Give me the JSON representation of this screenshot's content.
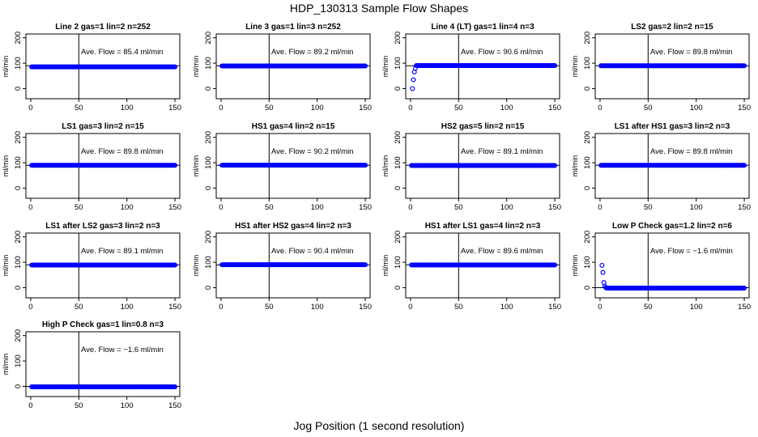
{
  "title": "HDP_130313  Sample Flow Shapes",
  "xlabel": "Jog Position (1 second resolution)",
  "colors": {
    "points": "#0000ff",
    "axes": "#000000"
  },
  "chart_data": [
    {
      "type": "scatter",
      "title": "Line 2 gas=1 lin=2 n=252",
      "ylabel": "ml/min",
      "xlim": [
        0,
        150
      ],
      "ylim": [
        0,
        200
      ],
      "x_ticks": [
        0,
        50,
        100,
        150
      ],
      "y_ticks": [
        0,
        100,
        200
      ],
      "vline": 50,
      "hline": 90,
      "annotation": "Ave. Flow =  85.4  ml/min",
      "shape": "flat",
      "level": 85.4
    },
    {
      "type": "scatter",
      "title": "Line 3 gas=1 lin=3 n=252",
      "ylabel": "ml/min",
      "xlim": [
        0,
        150
      ],
      "ylim": [
        0,
        200
      ],
      "x_ticks": [
        0,
        50,
        100,
        150
      ],
      "y_ticks": [
        0,
        100,
        200
      ],
      "vline": 50,
      "hline": 90,
      "annotation": "Ave. Flow =  89.2  ml/min",
      "shape": "flat",
      "level": 89.2
    },
    {
      "type": "scatter",
      "title": "Line 4 (LT) gas=1 lin=4 n=3",
      "ylabel": "ml/min",
      "xlim": [
        0,
        150
      ],
      "ylim": [
        0,
        200
      ],
      "x_ticks": [
        0,
        50,
        100,
        150
      ],
      "y_ticks": [
        0,
        100,
        200
      ],
      "vline": 50,
      "hline": 90,
      "annotation": "Ave. Flow =  90.6  ml/min",
      "shape": "ramp-up",
      "level": 90.6,
      "initial_points": [
        [
          2,
          0
        ],
        [
          3,
          35
        ],
        [
          4,
          65
        ],
        [
          5,
          80
        ]
      ]
    },
    {
      "type": "scatter",
      "title": "LS2 gas=2 lin=2 n=15",
      "ylabel": "ml/min",
      "xlim": [
        0,
        150
      ],
      "ylim": [
        0,
        200
      ],
      "x_ticks": [
        0,
        50,
        100,
        150
      ],
      "y_ticks": [
        0,
        100,
        200
      ],
      "vline": 50,
      "hline": 90,
      "annotation": "Ave. Flow =  89.8  ml/min",
      "shape": "flat",
      "level": 89.8
    },
    {
      "type": "scatter",
      "title": "LS1 gas=3 lin=2 n=15",
      "ylabel": "ml/min",
      "xlim": [
        0,
        150
      ],
      "ylim": [
        0,
        200
      ],
      "x_ticks": [
        0,
        50,
        100,
        150
      ],
      "y_ticks": [
        0,
        100,
        200
      ],
      "vline": 50,
      "hline": 90,
      "annotation": "Ave. Flow =  89.8  ml/min",
      "shape": "flat",
      "level": 89.8
    },
    {
      "type": "scatter",
      "title": "HS1 gas=4 lin=2 n=15",
      "ylabel": "ml/min",
      "xlim": [
        0,
        150
      ],
      "ylim": [
        0,
        200
      ],
      "x_ticks": [
        0,
        50,
        100,
        150
      ],
      "y_ticks": [
        0,
        100,
        200
      ],
      "vline": 50,
      "hline": 90,
      "annotation": "Ave. Flow =  90.2  ml/min",
      "shape": "flat",
      "level": 90.2
    },
    {
      "type": "scatter",
      "title": "HS2 gas=5 lin=2 n=15",
      "ylabel": "ml/min",
      "xlim": [
        0,
        150
      ],
      "ylim": [
        0,
        200
      ],
      "x_ticks": [
        0,
        50,
        100,
        150
      ],
      "y_ticks": [
        0,
        100,
        200
      ],
      "vline": 50,
      "hline": 90,
      "annotation": "Ave. Flow =  89.1  ml/min",
      "shape": "flat",
      "level": 89.1
    },
    {
      "type": "scatter",
      "title": "LS1 after HS1 gas=3 lin=2 n=3",
      "ylabel": "ml/min",
      "xlim": [
        0,
        150
      ],
      "ylim": [
        0,
        200
      ],
      "x_ticks": [
        0,
        50,
        100,
        150
      ],
      "y_ticks": [
        0,
        100,
        200
      ],
      "vline": 50,
      "hline": 90,
      "annotation": "Ave. Flow =  89.8  ml/min",
      "shape": "flat",
      "level": 89.8
    },
    {
      "type": "scatter",
      "title": "LS1 after LS2 gas=3 lin=2 n=3",
      "ylabel": "ml/min",
      "xlim": [
        0,
        150
      ],
      "ylim": [
        0,
        200
      ],
      "x_ticks": [
        0,
        50,
        100,
        150
      ],
      "y_ticks": [
        0,
        100,
        200
      ],
      "vline": 50,
      "hline": 90,
      "annotation": "Ave. Flow =  89.1  ml/min",
      "shape": "flat",
      "level": 89.1
    },
    {
      "type": "scatter",
      "title": "HS1 after HS2 gas=4 lin=2 n=3",
      "ylabel": "ml/min",
      "xlim": [
        0,
        150
      ],
      "ylim": [
        0,
        200
      ],
      "x_ticks": [
        0,
        50,
        100,
        150
      ],
      "y_ticks": [
        0,
        100,
        200
      ],
      "vline": 50,
      "hline": 90,
      "annotation": "Ave. Flow =  90.4  ml/min",
      "shape": "flat",
      "level": 90.4
    },
    {
      "type": "scatter",
      "title": "HS1 after LS1 gas=4 lin=2 n=3",
      "ylabel": "ml/min",
      "xlim": [
        0,
        150
      ],
      "ylim": [
        0,
        200
      ],
      "x_ticks": [
        0,
        50,
        100,
        150
      ],
      "y_ticks": [
        0,
        100,
        200
      ],
      "vline": 50,
      "hline": 90,
      "annotation": "Ave. Flow =  89.6  ml/min",
      "shape": "flat",
      "level": 89.6
    },
    {
      "type": "scatter",
      "title": "Low P Check gas=1.2 lin=2 n=6",
      "ylabel": "ml/min",
      "xlim": [
        0,
        150
      ],
      "ylim": [
        0,
        200
      ],
      "x_ticks": [
        0,
        50,
        100,
        150
      ],
      "y_ticks": [
        0,
        100,
        200
      ],
      "vline": 50,
      "hline": 0,
      "annotation": "Ave. Flow =  −1.6  ml/min",
      "shape": "decay",
      "level": -1.6,
      "initial_points": [
        [
          2,
          88
        ],
        [
          3,
          60
        ],
        [
          4,
          20
        ],
        [
          5,
          5
        ],
        [
          6,
          0
        ]
      ]
    },
    {
      "type": "scatter",
      "title": "High P Check gas=1 lin=0.8 n=3",
      "ylabel": "ml/min",
      "xlim": [
        0,
        150
      ],
      "ylim": [
        0,
        200
      ],
      "x_ticks": [
        0,
        50,
        100,
        150
      ],
      "y_ticks": [
        0,
        100,
        200
      ],
      "vline": 50,
      "hline": 0,
      "annotation": "Ave. Flow =  −1.6  ml/min",
      "shape": "flat",
      "level": -1.6
    }
  ]
}
